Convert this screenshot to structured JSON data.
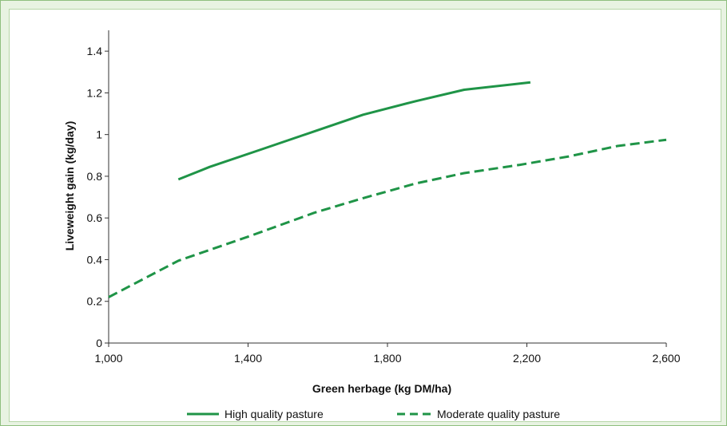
{
  "chart_data": {
    "type": "line",
    "xlabel": "Green herbage (kg DM/ha)",
    "ylabel": "Liveweight gain (kg/day)",
    "xlim": [
      1000,
      2600
    ],
    "ylim": [
      0,
      1.5
    ],
    "x_ticks": [
      1000,
      1400,
      1800,
      2200,
      2600
    ],
    "x_tick_labels": [
      "1,000",
      "1,400",
      "1,800",
      "2,200",
      "2,600"
    ],
    "y_ticks": [
      0,
      0.2,
      0.4,
      0.6,
      0.8,
      1,
      1.2,
      1.4
    ],
    "y_tick_labels": [
      "0",
      "0.2",
      "0.4",
      "0.6",
      "0.8",
      "1",
      "1.2",
      "1.4"
    ],
    "grid": false,
    "legend_position": "bottom",
    "series": [
      {
        "name": "High quality pasture",
        "color": "#1f9447",
        "style": "solid",
        "x": [
          1200,
          1290,
          1440,
          1590,
          1730,
          1880,
          2020,
          2210
        ],
        "y": [
          0.785,
          0.845,
          0.93,
          1.015,
          1.095,
          1.16,
          1.215,
          1.25
        ]
      },
      {
        "name": "Moderate quality pasture",
        "color": "#1f9447",
        "style": "dashed",
        "x": [
          1000,
          1200,
          1400,
          1590,
          1730,
          1880,
          2020,
          2180,
          2320,
          2460,
          2600
        ],
        "y": [
          0.22,
          0.395,
          0.51,
          0.625,
          0.695,
          0.765,
          0.815,
          0.855,
          0.895,
          0.945,
          0.975
        ]
      }
    ]
  }
}
